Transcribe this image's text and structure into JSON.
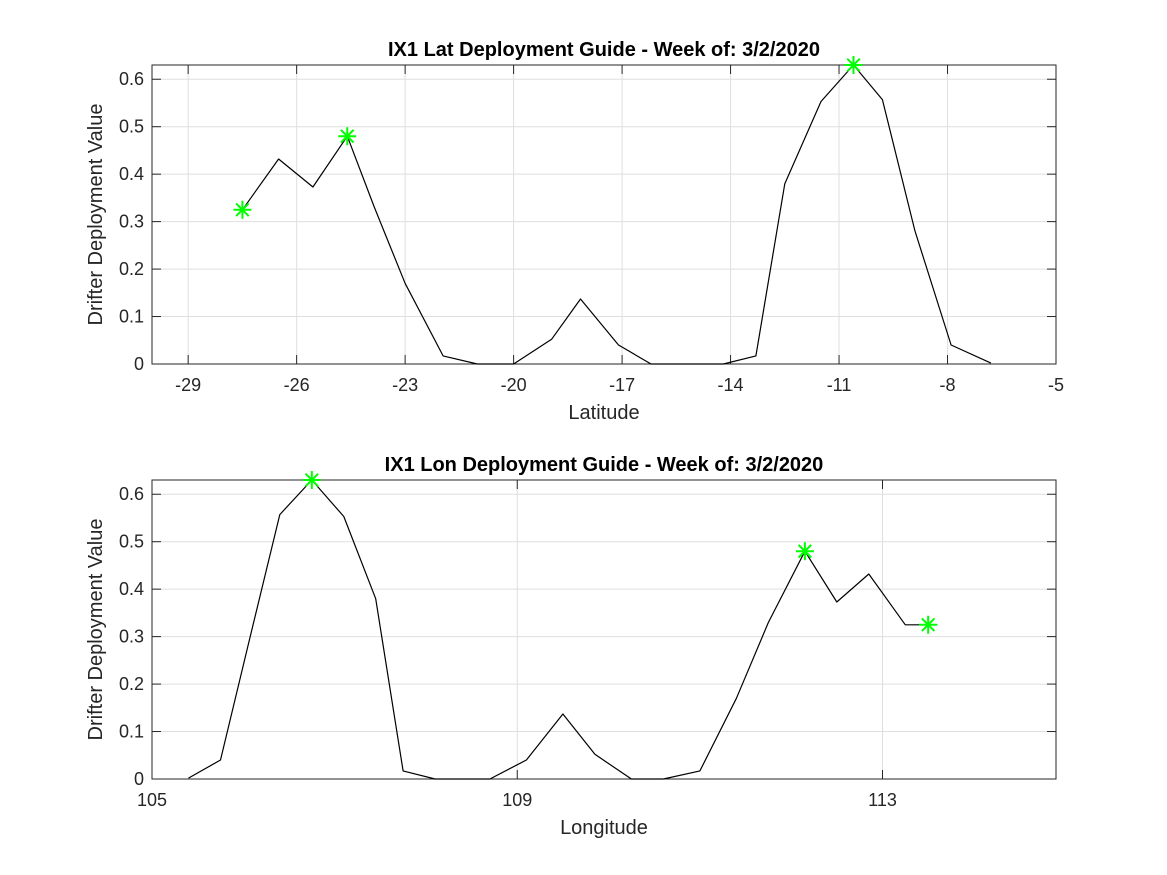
{
  "colors": {
    "line": "#000000",
    "marker": "#00ff00",
    "grid": "#dfdfdf",
    "axis": "#262626",
    "background": "#ffffff"
  },
  "chart_data": [
    {
      "type": "line",
      "title": "IX1 Lat Deployment Guide - Week of: 3/2/2020",
      "xlabel": "Latitude",
      "ylabel": "Drifter Deployment Value",
      "xlim": [
        -30,
        -5
      ],
      "ylim": [
        0,
        0.63
      ],
      "xticks": [
        -29,
        -26,
        -23,
        -20,
        -17,
        -14,
        -11,
        -8,
        -5
      ],
      "xtick_labels": [
        "-29",
        "-26",
        "-23",
        "-20",
        "-17",
        "-14",
        "-11",
        "-8",
        "-5"
      ],
      "yticks": [
        0,
        0.1,
        0.2,
        0.3,
        0.4,
        0.5,
        0.6
      ],
      "ytick_labels": [
        "0",
        "0.1",
        "0.2",
        "0.3",
        "0.4",
        "0.5",
        "0.6"
      ],
      "grid": true,
      "legend": "none",
      "series": [
        {
          "style": "line",
          "x": [
            -27.5,
            -26.5,
            -25.55,
            -24.6,
            -23.85,
            -23.0,
            -21.95,
            -21.0,
            -20.0,
            -18.95,
            -18.15,
            -17.1,
            -16.2,
            -14.2,
            -13.3,
            -12.5,
            -11.5,
            -10.6,
            -9.8,
            -8.9,
            -7.9,
            -6.8
          ],
          "y": [
            0.325,
            0.432,
            0.373,
            0.48,
            0.33,
            0.17,
            0.017,
            0.0,
            0.0,
            0.052,
            0.137,
            0.04,
            0.0,
            0.0,
            0.017,
            0.38,
            0.553,
            0.63,
            0.557,
            0.28,
            0.04,
            0.002
          ]
        },
        {
          "style": "markers",
          "marker": "asterisk",
          "x": [
            -27.5,
            -24.6,
            -10.6
          ],
          "y": [
            0.325,
            0.48,
            0.63
          ]
        }
      ]
    },
    {
      "type": "line",
      "title": "IX1 Lon Deployment Guide - Week of: 3/2/2020",
      "xlabel": "Longitude",
      "ylabel": "Drifter Deployment Value",
      "xlim": [
        105,
        114.9
      ],
      "ylim": [
        0,
        0.63
      ],
      "xticks": [
        105,
        109,
        113
      ],
      "xtick_labels": [
        "105",
        "109",
        "113"
      ],
      "yticks": [
        0,
        0.1,
        0.2,
        0.3,
        0.4,
        0.5,
        0.6
      ],
      "ytick_labels": [
        "0",
        "0.1",
        "0.2",
        "0.3",
        "0.4",
        "0.5",
        "0.6"
      ],
      "grid": true,
      "legend": "none",
      "series": [
        {
          "style": "line",
          "x": [
            105.4,
            105.75,
            106.05,
            106.4,
            106.75,
            107.1,
            107.45,
            107.75,
            108.1,
            108.7,
            109.1,
            109.5,
            109.85,
            110.25,
            110.6,
            111.0,
            111.4,
            111.75,
            112.15,
            112.5,
            112.85,
            113.25,
            113.6
          ],
          "y": [
            0.002,
            0.04,
            0.28,
            0.557,
            0.63,
            0.553,
            0.38,
            0.017,
            0.0,
            0.0,
            0.04,
            0.137,
            0.052,
            0.0,
            0.0,
            0.017,
            0.17,
            0.33,
            0.48,
            0.373,
            0.432,
            0.325,
            0.325
          ]
        },
        {
          "style": "markers",
          "marker": "asterisk",
          "x": [
            106.75,
            112.15,
            113.5
          ],
          "y": [
            0.63,
            0.48,
            0.325
          ]
        }
      ]
    }
  ]
}
